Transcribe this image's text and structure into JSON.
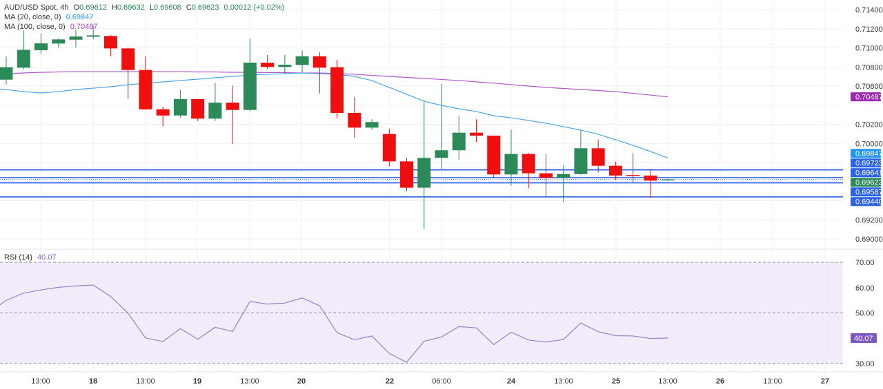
{
  "header": {
    "symbol": "AUD/USD Spot, 4h",
    "open_label": "O",
    "open": "0.69612",
    "high_label": "H",
    "high": "0.69632",
    "low_label": "L",
    "low": "0.69608",
    "close_label": "C",
    "close": "0.69623",
    "change": "0.00012 (+0.02%)"
  },
  "indicators": {
    "ma20": {
      "label": "MA (20, close, 0)",
      "value": "0.69847",
      "color": "#4aa3e6"
    },
    "ma100": {
      "label": "MA (100, close, 0)",
      "value": "0.70487",
      "color": "#b055c8"
    },
    "rsi": {
      "label": "RSI (14)",
      "value": "40.07",
      "color": "#9481c9"
    }
  },
  "colors": {
    "up": "#2b8a57",
    "down": "#ef0f0f",
    "level_line": "#2a5fe0",
    "rsi_band": "#f1ebfa"
  },
  "chart_data": {
    "type": "candlestick",
    "title": "AUD/USD Spot, 4h",
    "ylim": [
      0.689,
      0.714
    ],
    "price_ticks": [
      "0.71400",
      "0.71200",
      "0.71000",
      "0.70800",
      "0.70600",
      "0.70400",
      "0.70200",
      "0.70000",
      "0.69800",
      "0.69600",
      "0.69400",
      "0.69200",
      "0.69000"
    ],
    "time_labels": [
      "13:00",
      "18",
      "13:00",
      "19",
      "13:00",
      "20",
      "22",
      "06:00",
      "24",
      "13:00",
      "25",
      "13:00",
      "26",
      "13:00",
      "27"
    ],
    "candles": [
      {
        "o": 0.70667,
        "h": 0.7091,
        "l": 0.70614,
        "c": 0.70797
      },
      {
        "o": 0.70792,
        "h": 0.71184,
        "l": 0.70775,
        "c": 0.7098
      },
      {
        "o": 0.70975,
        "h": 0.71153,
        "l": 0.70934,
        "c": 0.71047
      },
      {
        "o": 0.71045,
        "h": 0.71097,
        "l": 0.71004,
        "c": 0.71088
      },
      {
        "o": 0.71085,
        "h": 0.71184,
        "l": 0.71001,
        "c": 0.71119
      },
      {
        "o": 0.71117,
        "h": 0.71232,
        "l": 0.7109,
        "c": 0.71131
      },
      {
        "o": 0.71124,
        "h": 0.71133,
        "l": 0.70912,
        "c": 0.70994
      },
      {
        "o": 0.70994,
        "h": 0.71004,
        "l": 0.70463,
        "c": 0.70768
      },
      {
        "o": 0.70768,
        "h": 0.70912,
        "l": 0.70348,
        "c": 0.70357
      },
      {
        "o": 0.70357,
        "h": 0.70384,
        "l": 0.7018,
        "c": 0.70292
      },
      {
        "o": 0.70292,
        "h": 0.70559,
        "l": 0.70268,
        "c": 0.70463
      },
      {
        "o": 0.70463,
        "h": 0.70463,
        "l": 0.70235,
        "c": 0.70259
      },
      {
        "o": 0.70259,
        "h": 0.70636,
        "l": 0.70235,
        "c": 0.70427
      },
      {
        "o": 0.70427,
        "h": 0.70605,
        "l": 0.69995,
        "c": 0.7035
      },
      {
        "o": 0.7035,
        "h": 0.71097,
        "l": 0.70336,
        "c": 0.70845
      },
      {
        "o": 0.70845,
        "h": 0.70924,
        "l": 0.7078,
        "c": 0.708
      },
      {
        "o": 0.708,
        "h": 0.70924,
        "l": 0.70732,
        "c": 0.70823
      },
      {
        "o": 0.70821,
        "h": 0.70973,
        "l": 0.70744,
        "c": 0.70912
      },
      {
        "o": 0.70912,
        "h": 0.70953,
        "l": 0.70523,
        "c": 0.70792
      },
      {
        "o": 0.70797,
        "h": 0.70872,
        "l": 0.70263,
        "c": 0.70319
      },
      {
        "o": 0.70319,
        "h": 0.70485,
        "l": 0.7006,
        "c": 0.70165
      },
      {
        "o": 0.70165,
        "h": 0.70252,
        "l": 0.70144,
        "c": 0.70223
      },
      {
        "o": 0.70098,
        "h": 0.70155,
        "l": 0.69759,
        "c": 0.69812
      },
      {
        "o": 0.69812,
        "h": 0.6985,
        "l": 0.695,
        "c": 0.69536
      },
      {
        "o": 0.69536,
        "h": 0.70432,
        "l": 0.69106,
        "c": 0.69848
      },
      {
        "o": 0.69848,
        "h": 0.70624,
        "l": 0.69728,
        "c": 0.69928
      },
      {
        "o": 0.69928,
        "h": 0.70292,
        "l": 0.69831,
        "c": 0.70112
      },
      {
        "o": 0.70112,
        "h": 0.70252,
        "l": 0.70016,
        "c": 0.70081
      },
      {
        "o": 0.70081,
        "h": 0.70081,
        "l": 0.69639,
        "c": 0.69675
      },
      {
        "o": 0.69675,
        "h": 0.70144,
        "l": 0.6956,
        "c": 0.69889
      },
      {
        "o": 0.69889,
        "h": 0.69899,
        "l": 0.69531,
        "c": 0.69687
      },
      {
        "o": 0.69687,
        "h": 0.69887,
        "l": 0.69442,
        "c": 0.69639
      },
      {
        "o": 0.69639,
        "h": 0.69771,
        "l": 0.69387,
        "c": 0.69679
      },
      {
        "o": 0.69679,
        "h": 0.70141,
        "l": 0.6967,
        "c": 0.69949
      },
      {
        "o": 0.69949,
        "h": 0.7004,
        "l": 0.69694,
        "c": 0.69766
      },
      {
        "o": 0.69766,
        "h": 0.69807,
        "l": 0.69615,
        "c": 0.69663
      },
      {
        "o": 0.6967,
        "h": 0.69899,
        "l": 0.69584,
        "c": 0.69663
      },
      {
        "o": 0.69663,
        "h": 0.69723,
        "l": 0.69427,
        "c": 0.6961
      },
      {
        "o": 0.69612,
        "h": 0.69632,
        "l": 0.69608,
        "c": 0.69623
      }
    ],
    "ma20": [
      0.70564,
      0.70542,
      0.70528,
      0.70542,
      0.70564,
      0.70578,
      0.70593,
      0.70614,
      0.70629,
      0.70643,
      0.70658,
      0.70672,
      0.70687,
      0.70701,
      0.70715,
      0.70723,
      0.7073,
      0.70737,
      0.7073,
      0.70723,
      0.70701,
      0.70658,
      0.70586,
      0.70514,
      0.70441,
      0.70398,
      0.70362,
      0.70333,
      0.7029,
      0.70268,
      0.7024,
      0.70211,
      0.70175,
      0.70139,
      0.70096,
      0.70038,
      0.6998,
      0.69915,
      0.69847
    ],
    "ma100": [
      0.7073,
      0.70737,
      0.70744,
      0.70748,
      0.70751,
      0.70751,
      0.70751,
      0.70751,
      0.70751,
      0.70751,
      0.70751,
      0.70748,
      0.70748,
      0.70744,
      0.70744,
      0.70741,
      0.70741,
      0.70737,
      0.70737,
      0.7073,
      0.70723,
      0.70712,
      0.70701,
      0.7069,
      0.7068,
      0.70669,
      0.70658,
      0.70644,
      0.7063,
      0.70615,
      0.706,
      0.70586,
      0.70575,
      0.70564,
      0.70553,
      0.70542,
      0.70524,
      0.70506,
      0.70487
    ],
    "levels": [
      {
        "price": 0.69723,
        "label": "0.69723"
      },
      {
        "price": 0.69641,
        "label": "0.69641"
      },
      {
        "price": 0.69587,
        "label": "0.69587"
      },
      {
        "price": 0.6944,
        "label": "0.69440"
      }
    ],
    "current_price": {
      "price": 0.69623,
      "label": "0.69623"
    },
    "ma_badges": [
      {
        "price": 0.70487,
        "label": "0.70487",
        "series": "ma100"
      },
      {
        "price": 0.69847,
        "label": "0.69847",
        "series": "ma20"
      }
    ],
    "rsi": {
      "ylim": [
        30,
        70
      ],
      "ticks": [
        "70.00",
        "60.00",
        "50.00",
        "30.00"
      ],
      "bands": [
        70,
        50,
        30
      ],
      "values": [
        55.0,
        57.8,
        59.1,
        60.1,
        60.7,
        61.0,
        56.5,
        49.9,
        40.1,
        38.7,
        43.8,
        39.6,
        44.3,
        42.7,
        54.5,
        53.5,
        53.9,
        55.9,
        52.8,
        42.2,
        39.4,
        40.9,
        34.0,
        30.5,
        38.8,
        40.5,
        44.6,
        44.1,
        37.5,
        42.4,
        39.3,
        38.5,
        39.5,
        46.0,
        42.6,
        41.0,
        40.9,
        39.9,
        40.07
      ],
      "badge": "40.07"
    },
    "grid": true
  }
}
